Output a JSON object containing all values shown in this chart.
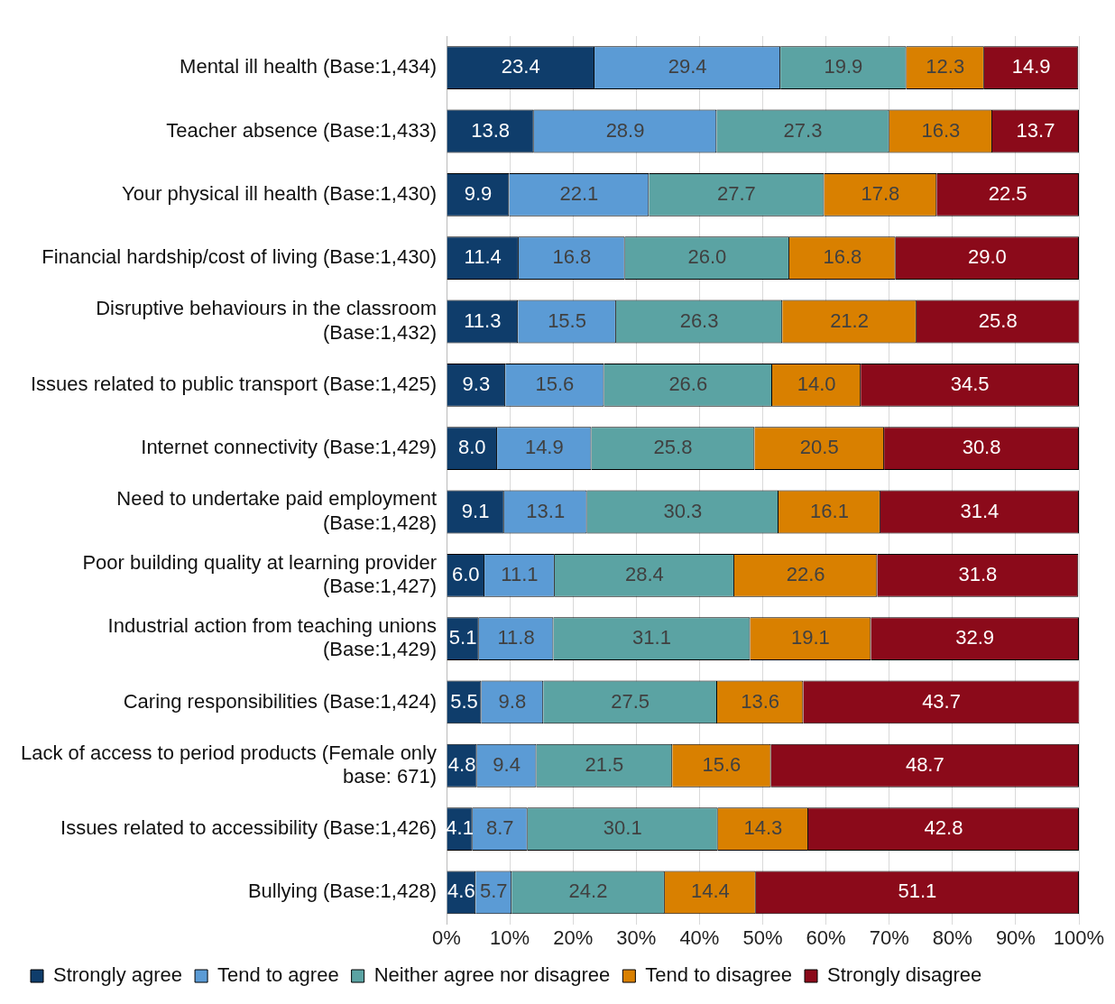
{
  "chart_data": {
    "type": "bar",
    "orientation": "horizontal",
    "stacked": true,
    "categories": [
      "Mental ill health (Base:1,434)",
      "Teacher absence (Base:1,433)",
      "Your physical ill health (Base:1,430)",
      "Financial hardship/cost of living (Base:1,430)",
      "Disruptive behaviours in the classroom (Base:1,432)",
      "Issues related to public transport (Base:1,425)",
      "Internet connectivity (Base:1,429)",
      "Need to undertake paid employment (Base:1,428)",
      "Poor building quality at learning provider (Base:1,427)",
      "Industrial action from teaching unions (Base:1,429)",
      "Caring responsibilities (Base:1,424)",
      "Lack of access to period products (Female only base: 671)",
      "Issues related to accessibility (Base:1,426)",
      "Bullying (Base:1,428)"
    ],
    "series": [
      {
        "name": "Strongly agree",
        "color": "#0f3d6b",
        "values": [
          23.4,
          13.8,
          9.9,
          11.4,
          11.3,
          9.3,
          8.0,
          9.1,
          6.0,
          5.1,
          5.5,
          4.8,
          4.1,
          4.6
        ],
        "value_labels": [
          "23.4",
          "13.8",
          "9.9",
          "11.4",
          "11.3",
          "9.3",
          "8.0",
          "9.1",
          "6.0",
          "5.1",
          "5.5",
          "4.8",
          "4.1",
          "4.6"
        ]
      },
      {
        "name": "Tend to agree",
        "color": "#5b9bd5",
        "values": [
          29.4,
          28.9,
          22.1,
          16.8,
          15.5,
          15.6,
          14.9,
          13.1,
          11.1,
          11.8,
          9.8,
          9.4,
          8.7,
          5.7
        ],
        "value_labels": [
          "29.4",
          "28.9",
          "22.1",
          "16.8",
          "15.5",
          "15.6",
          "14.9",
          "13.1",
          "11.1",
          "11.8",
          "9.8",
          "9.4",
          "8.7",
          "5.7"
        ]
      },
      {
        "name": "Neither agree nor disagree",
        "color": "#5ba3a3",
        "values": [
          19.9,
          27.3,
          27.7,
          26.0,
          26.3,
          26.6,
          25.8,
          30.3,
          28.4,
          31.1,
          27.5,
          21.5,
          30.1,
          24.2
        ],
        "value_labels": [
          "19.9",
          "27.3",
          "27.7",
          "26.0",
          "26.3",
          "26.6",
          "25.8",
          "30.3",
          "28.4",
          "31.1",
          "27.5",
          "21.5",
          "30.1",
          "24.2"
        ]
      },
      {
        "name": "Tend to disagree",
        "color": "#d98000",
        "values": [
          12.3,
          16.3,
          17.8,
          16.8,
          21.2,
          14.0,
          20.5,
          16.1,
          22.6,
          19.1,
          13.6,
          15.6,
          14.3,
          14.4
        ],
        "value_labels": [
          "12.3",
          "16.3",
          "17.8",
          "16.8",
          "21.2",
          "14.0",
          "20.5",
          "16.1",
          "22.6",
          "19.1",
          "13.6",
          "15.6",
          "14.3",
          "14.4"
        ]
      },
      {
        "name": "Strongly disagree",
        "color": "#8b0a1a",
        "values": [
          14.9,
          13.7,
          22.5,
          29.0,
          25.8,
          34.5,
          30.8,
          31.4,
          31.8,
          32.9,
          43.7,
          48.7,
          42.8,
          51.1
        ],
        "value_labels": [
          "14.9",
          "13.7",
          "22.5",
          "29.0",
          "25.8",
          "34.5",
          "30.8",
          "31.4",
          "31.8",
          "32.9",
          "43.7",
          "48.7",
          "42.8",
          "51.1"
        ]
      }
    ],
    "xlim": [
      0,
      100
    ],
    "xticks": [
      {
        "value": 0,
        "label": "0%"
      },
      {
        "value": 10,
        "label": "10%"
      },
      {
        "value": 20,
        "label": "20%"
      },
      {
        "value": 30,
        "label": "30%"
      },
      {
        "value": 40,
        "label": "40%"
      },
      {
        "value": 50,
        "label": "50%"
      },
      {
        "value": 60,
        "label": "60%"
      },
      {
        "value": 70,
        "label": "70%"
      },
      {
        "value": 80,
        "label": "80%"
      },
      {
        "value": 90,
        "label": "90%"
      },
      {
        "value": 100,
        "label": "100%"
      }
    ],
    "grid": "x",
    "legend": "bottom"
  }
}
